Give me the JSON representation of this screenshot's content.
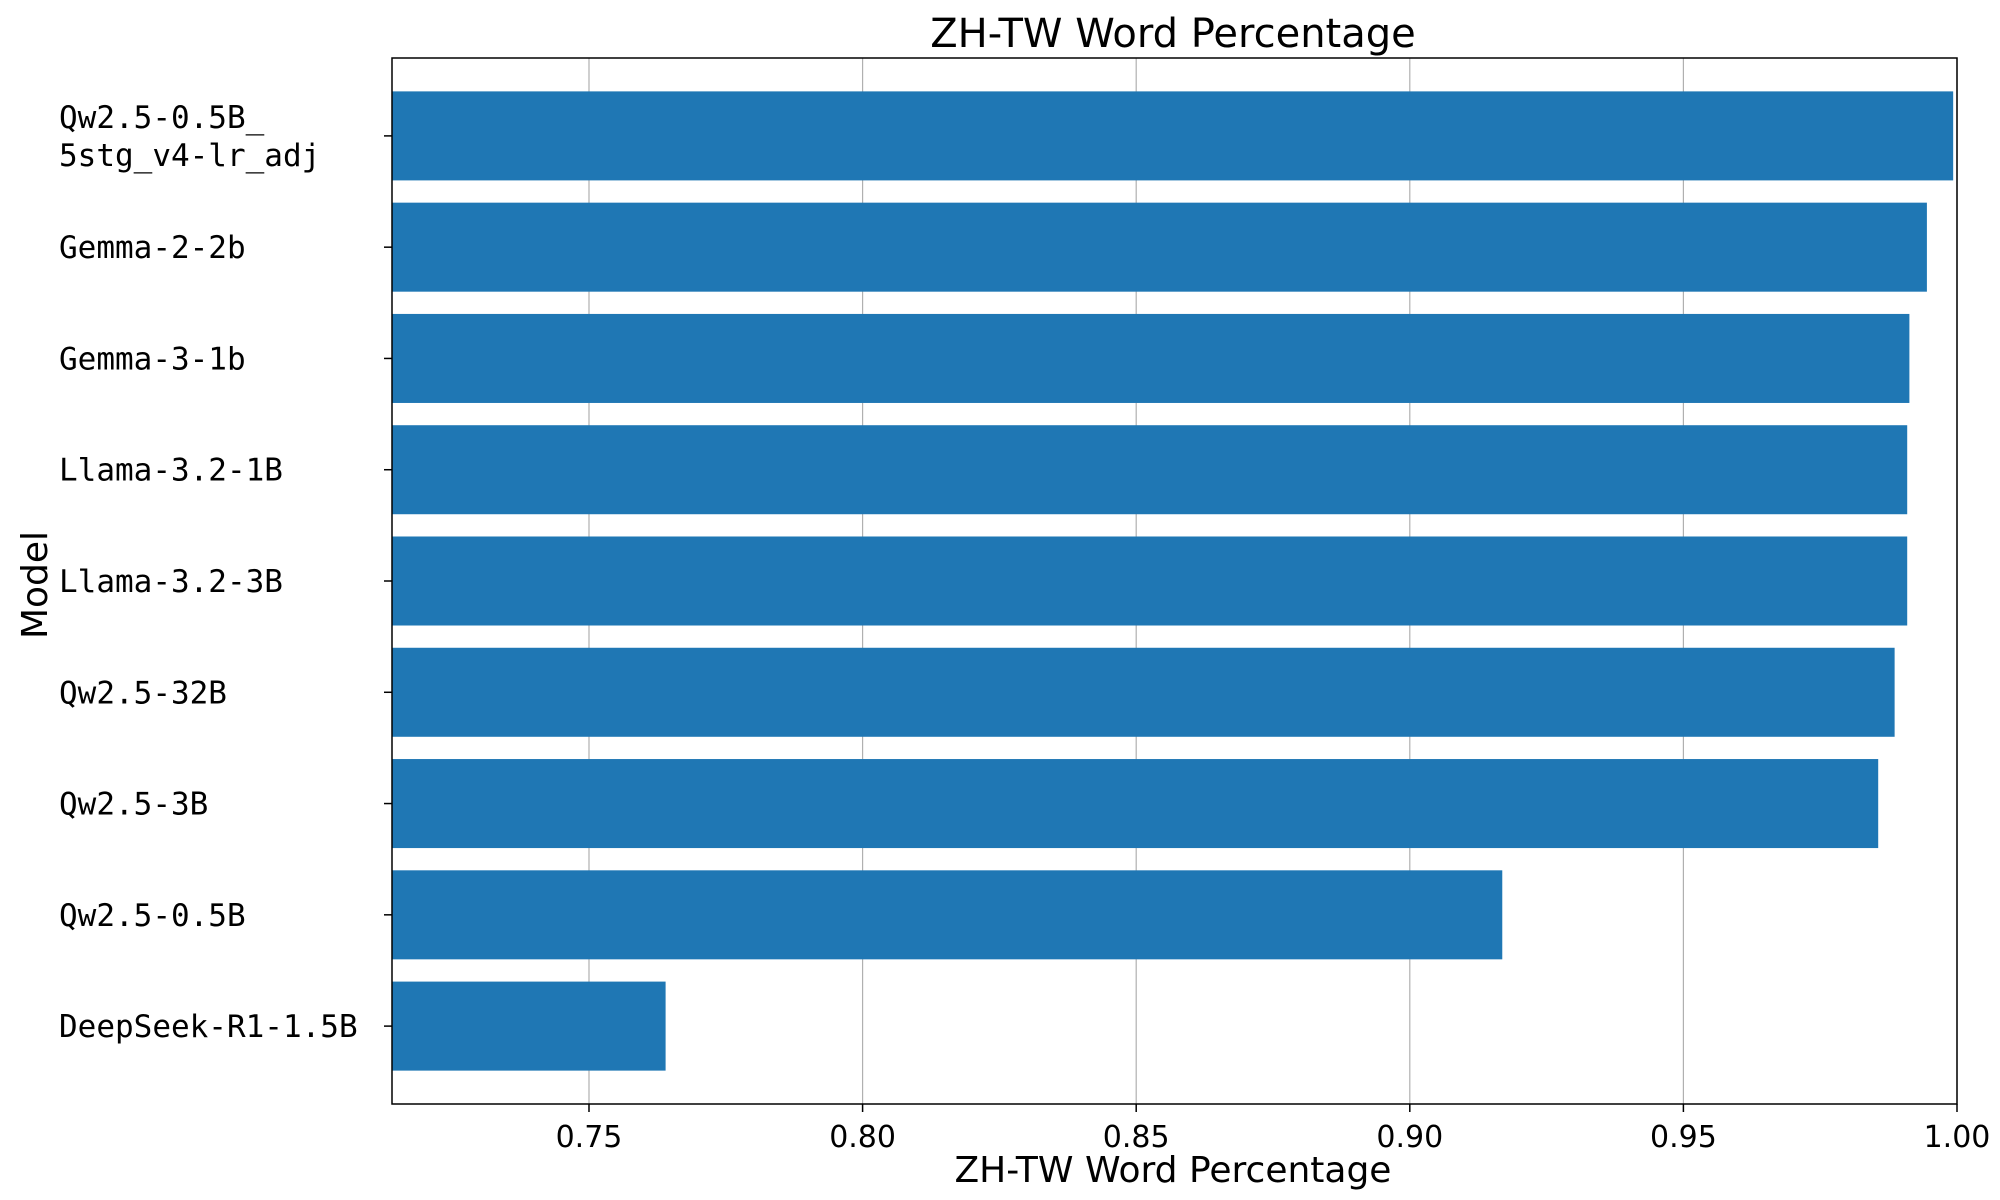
{
  "chart_data": {
    "type": "bar",
    "orientation": "horizontal",
    "title": "ZH-TW Word Percentage",
    "xlabel": "ZH-TW Word Percentage",
    "ylabel": "Model",
    "xlim": [
      0.714,
      1.0
    ],
    "xticks": [
      "0.75",
      "0.80",
      "0.85",
      "0.90",
      "0.95",
      "1.00"
    ],
    "grid": "x",
    "bar_color": "#1f77b4",
    "categories": [
      "Qw2.5-0.5B_\n5stg_v4-lr_adj",
      "Gemma-2-2b",
      "Gemma-3-1b",
      "Llama-3.2-1B",
      "Llama-3.2-3B",
      "Qw2.5-32B",
      "Qw2.5-3B",
      "Qw2.5-0.5B",
      "DeepSeek-R1-1.5B"
    ],
    "values": [
      0.9993,
      0.9945,
      0.9913,
      0.9909,
      0.9909,
      0.9886,
      0.9856,
      0.9169,
      0.764
    ]
  }
}
